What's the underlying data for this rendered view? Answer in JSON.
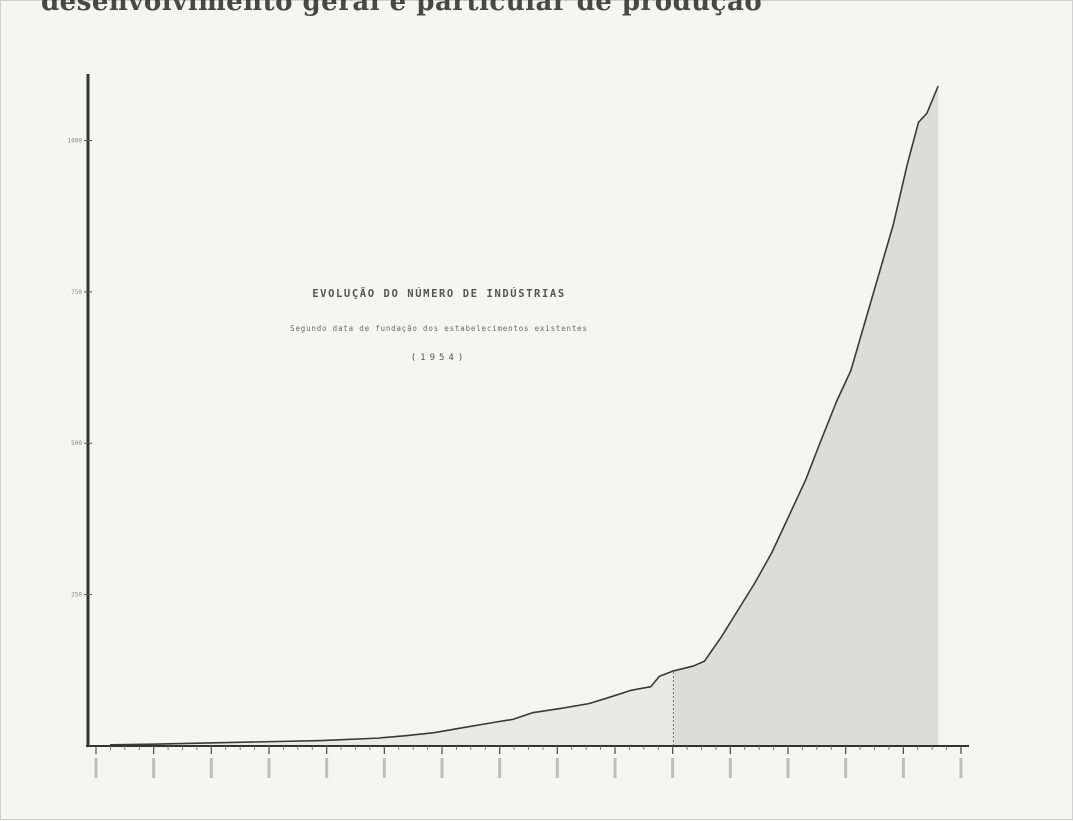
{
  "page": {
    "top_text": "desenvolvimento geral e particular de produção"
  },
  "chart_data": {
    "type": "area",
    "title": "EVOLUÇÃO DO NÚMERO DE INDÚSTRIAS",
    "subtitle": "Segundo data de fundação dos estabelecimentos existentes",
    "year_note": "(1954)",
    "xlabel": "",
    "ylabel": "",
    "y_ticks": [
      250,
      500,
      750,
      1000
    ],
    "ylim": [
      0,
      1090
    ],
    "xlim": [
      0,
      30
    ],
    "x_tick_count": 16,
    "marker_x": 20.5,
    "series": [
      {
        "values": [
          [
            0.5,
            2
          ],
          [
            2,
            3
          ],
          [
            4,
            5
          ],
          [
            6,
            7
          ],
          [
            8,
            9
          ],
          [
            10,
            13
          ],
          [
            11,
            17
          ],
          [
            12,
            22
          ],
          [
            13,
            30
          ],
          [
            14,
            38
          ],
          [
            14.8,
            44
          ],
          [
            15.5,
            55
          ],
          [
            16.5,
            62
          ],
          [
            17.5,
            70
          ],
          [
            18.2,
            80
          ],
          [
            19,
            92
          ],
          [
            19.7,
            98
          ],
          [
            20,
            115
          ],
          [
            20.5,
            124
          ],
          [
            21.2,
            132
          ],
          [
            21.6,
            140
          ],
          [
            22.2,
            180
          ],
          [
            22.8,
            225
          ],
          [
            23.4,
            270
          ],
          [
            24,
            320
          ],
          [
            24.6,
            380
          ],
          [
            25.2,
            440
          ],
          [
            25.7,
            500
          ],
          [
            26.3,
            570
          ],
          [
            26.8,
            620
          ],
          [
            27.3,
            700
          ],
          [
            27.8,
            780
          ],
          [
            28.3,
            860
          ],
          [
            28.8,
            960
          ],
          [
            29.2,
            1030
          ],
          [
            29.5,
            1045
          ],
          [
            29.9,
            1090
          ]
        ]
      }
    ]
  }
}
